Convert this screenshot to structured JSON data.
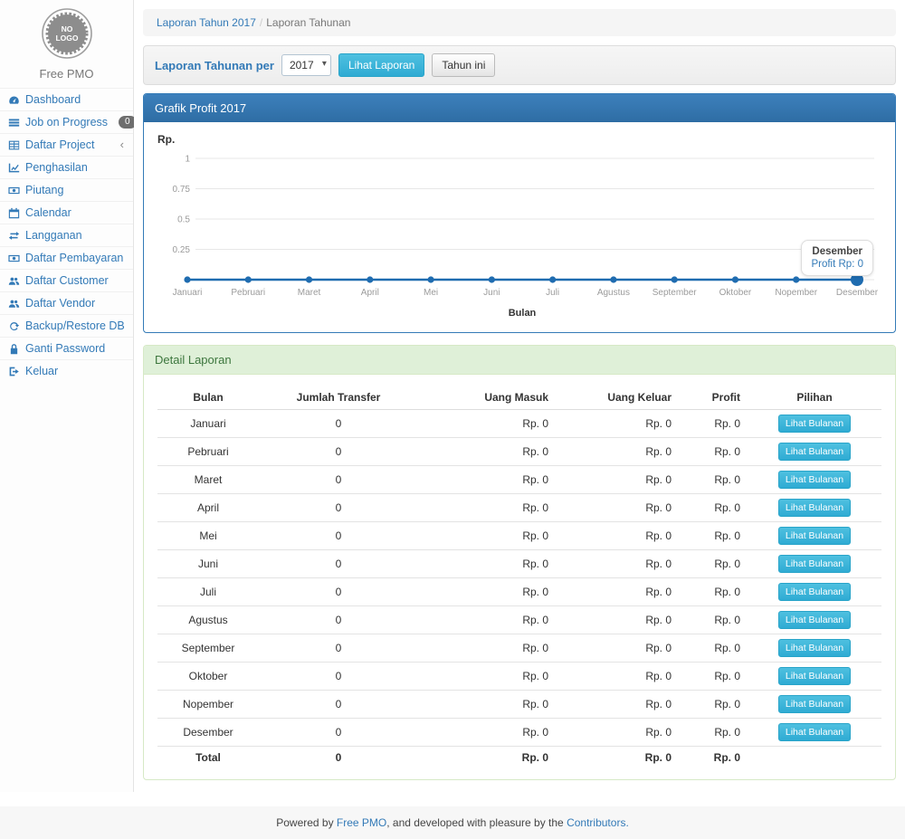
{
  "sidebar": {
    "logo_text": "NO LOGO",
    "brand": "Free PMO",
    "items": [
      {
        "label": "Dashboard",
        "icon": "dashboard-icon"
      },
      {
        "label": "Job on Progress",
        "icon": "tasks-icon",
        "badge": "0"
      },
      {
        "label": "Daftar Project",
        "icon": "table-icon",
        "chevron": "‹"
      },
      {
        "label": "Penghasilan",
        "icon": "line-chart-icon"
      },
      {
        "label": "Piutang",
        "icon": "money-icon"
      },
      {
        "label": "Calendar",
        "icon": "calendar-icon"
      },
      {
        "label": "Langganan",
        "icon": "exchange-icon"
      },
      {
        "label": "Daftar Pembayaran",
        "icon": "money-icon"
      },
      {
        "label": "Daftar Customer",
        "icon": "users-icon"
      },
      {
        "label": "Daftar Vendor",
        "icon": "users-icon"
      },
      {
        "label": "Backup/Restore DB",
        "icon": "refresh-icon"
      },
      {
        "label": "Ganti Password",
        "icon": "lock-icon"
      },
      {
        "label": "Keluar",
        "icon": "sign-out-icon"
      }
    ]
  },
  "breadcrumb": {
    "link": "Laporan Tahun 2017",
    "separator": "/",
    "current": "Laporan Tahunan"
  },
  "filter": {
    "label": "Laporan Tahunan per",
    "year_selected": "2017",
    "view_button": "Lihat Laporan",
    "this_year_button": "Tahun ini"
  },
  "chart_panel": {
    "title": "Grafik Profit 2017"
  },
  "chart_data": {
    "type": "line",
    "title": "Grafik Profit 2017",
    "x": [
      "Januari",
      "Pebruari",
      "Maret",
      "April",
      "Mei",
      "Juni",
      "Juli",
      "Agustus",
      "September",
      "Oktober",
      "Nopember",
      "Desember"
    ],
    "series": [
      {
        "name": "Profit",
        "values": [
          0,
          0,
          0,
          0,
          0,
          0,
          0,
          0,
          0,
          0,
          0,
          0
        ]
      }
    ],
    "xlabel": "Bulan",
    "ylabel": "Rp.",
    "ylim": [
      0,
      1
    ],
    "yticks": [
      "0",
      "0.25",
      "0.5",
      "0.75",
      "1"
    ],
    "grid": true,
    "legend": false,
    "line_color": "#1f6cb0",
    "tooltip": {
      "title": "Desember",
      "value": "Profit Rp: 0"
    }
  },
  "detail_panel": {
    "title": "Detail Laporan",
    "table": {
      "headers": [
        "Bulan",
        "Jumlah Transfer",
        "Uang Masuk",
        "Uang Keluar",
        "Profit",
        "Pilihan"
      ],
      "action_label": "Lihat Bulanan",
      "rows": [
        [
          "Januari",
          "0",
          "Rp. 0",
          "Rp. 0",
          "Rp. 0"
        ],
        [
          "Pebruari",
          "0",
          "Rp. 0",
          "Rp. 0",
          "Rp. 0"
        ],
        [
          "Maret",
          "0",
          "Rp. 0",
          "Rp. 0",
          "Rp. 0"
        ],
        [
          "April",
          "0",
          "Rp. 0",
          "Rp. 0",
          "Rp. 0"
        ],
        [
          "Mei",
          "0",
          "Rp. 0",
          "Rp. 0",
          "Rp. 0"
        ],
        [
          "Juni",
          "0",
          "Rp. 0",
          "Rp. 0",
          "Rp. 0"
        ],
        [
          "Juli",
          "0",
          "Rp. 0",
          "Rp. 0",
          "Rp. 0"
        ],
        [
          "Agustus",
          "0",
          "Rp. 0",
          "Rp. 0",
          "Rp. 0"
        ],
        [
          "September",
          "0",
          "Rp. 0",
          "Rp. 0",
          "Rp. 0"
        ],
        [
          "Oktober",
          "0",
          "Rp. 0",
          "Rp. 0",
          "Rp. 0"
        ],
        [
          "Nopember",
          "0",
          "Rp. 0",
          "Rp. 0",
          "Rp. 0"
        ],
        [
          "Desember",
          "0",
          "Rp. 0",
          "Rp. 0",
          "Rp. 0"
        ]
      ],
      "total_row": [
        "Total",
        "0",
        "Rp. 0",
        "Rp. 0",
        "Rp. 0",
        ""
      ]
    }
  },
  "footer": {
    "prefix": "Powered by ",
    "link1": "Free PMO",
    "middle": ", and developed with pleasure by the ",
    "link2": "Contributors."
  },
  "colors": {
    "accent_blue": "#337ab7",
    "panel_header_blue_top": "#3d80bc",
    "panel_header_blue_bottom": "#2e6da4",
    "info_button": "#2fabd3",
    "success_bg": "#dff0d8",
    "success_text": "#3c763d",
    "success_border": "#d6e9c6",
    "line_color": "#1f6cb0"
  }
}
